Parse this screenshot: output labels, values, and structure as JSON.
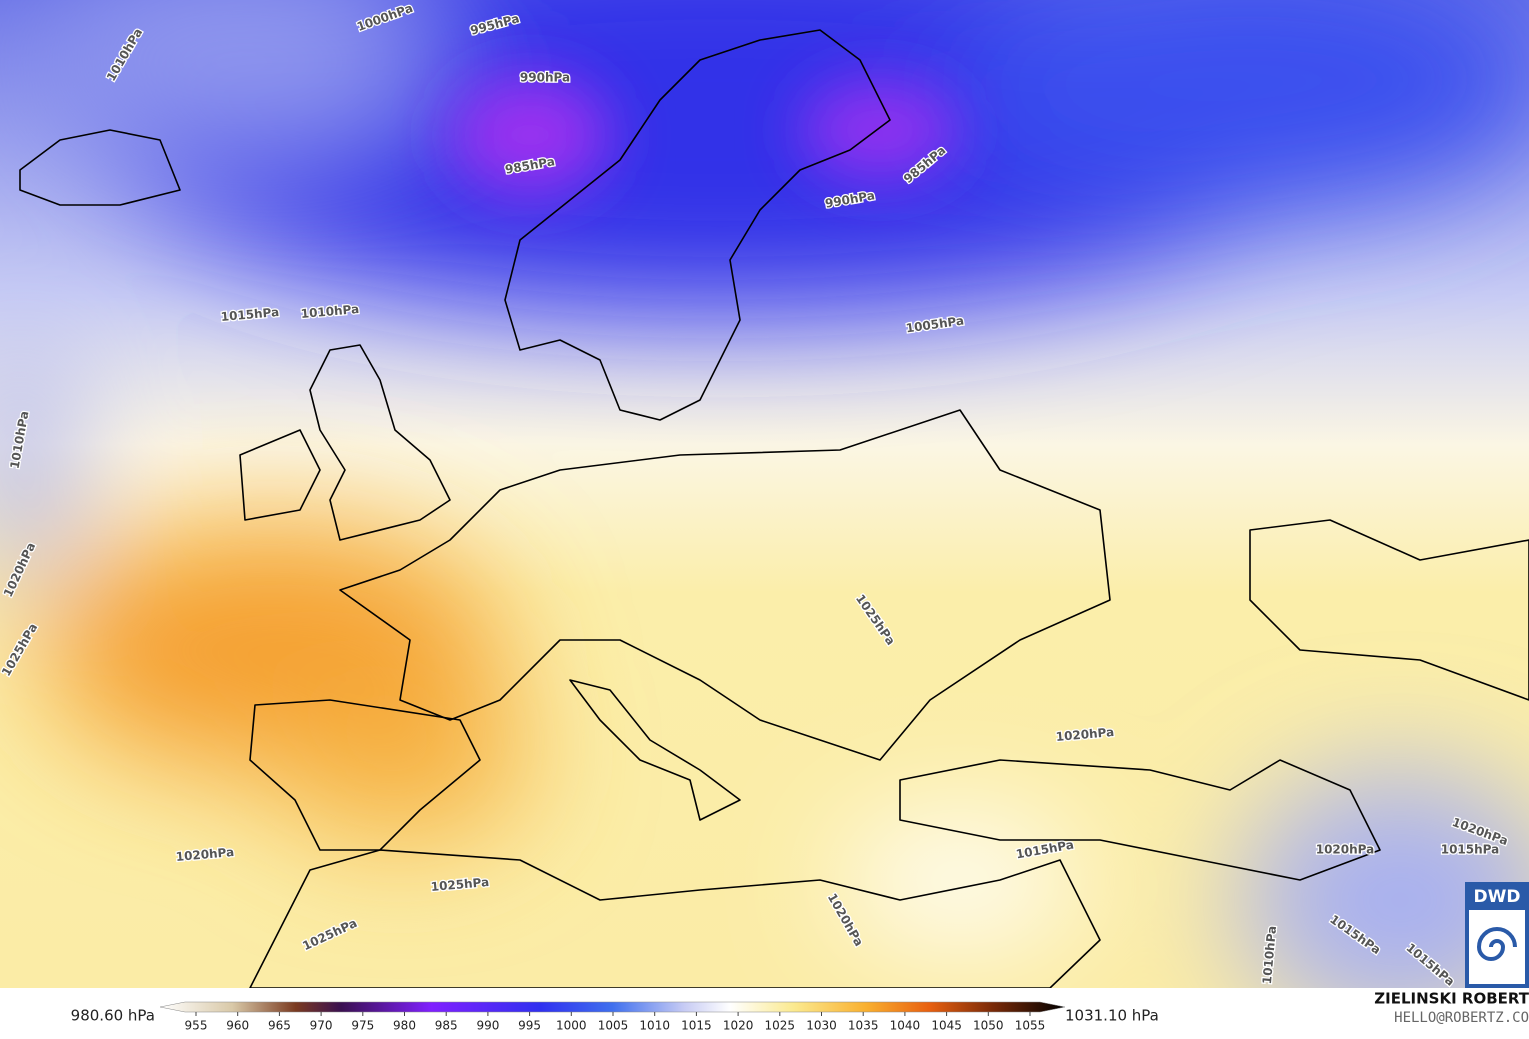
{
  "map": {
    "isobar_labels": [
      "1000hPa",
      "995hPa",
      "990hPa",
      "985hPa",
      "1010hPa",
      "985hPa",
      "990hPa",
      "1010hPa",
      "1015hPa",
      "1005hPa",
      "1010hPa",
      "1020hPa",
      "1025hPa",
      "1025hPa",
      "1020hPa",
      "1020hPa",
      "1025hPa",
      "1025hPa",
      "1015hPa",
      "1020hPa",
      "1020hPa",
      "1015hPa",
      "1015hPa",
      "1010hPa",
      "1020hPa",
      "1015hPa"
    ]
  },
  "colorbar": {
    "min_label": "980.60 hPa",
    "max_label": "1031.10 hPa",
    "ticks": [
      955,
      960,
      965,
      970,
      975,
      980,
      985,
      990,
      995,
      1000,
      1005,
      1010,
      1015,
      1020,
      1025,
      1030,
      1035,
      1040,
      1045,
      1050,
      1055
    ]
  },
  "credits": {
    "author": "ZIELINSKI ROBERT",
    "email": "HELLO@ROBERTZ.CO",
    "logo": "DWD"
  }
}
